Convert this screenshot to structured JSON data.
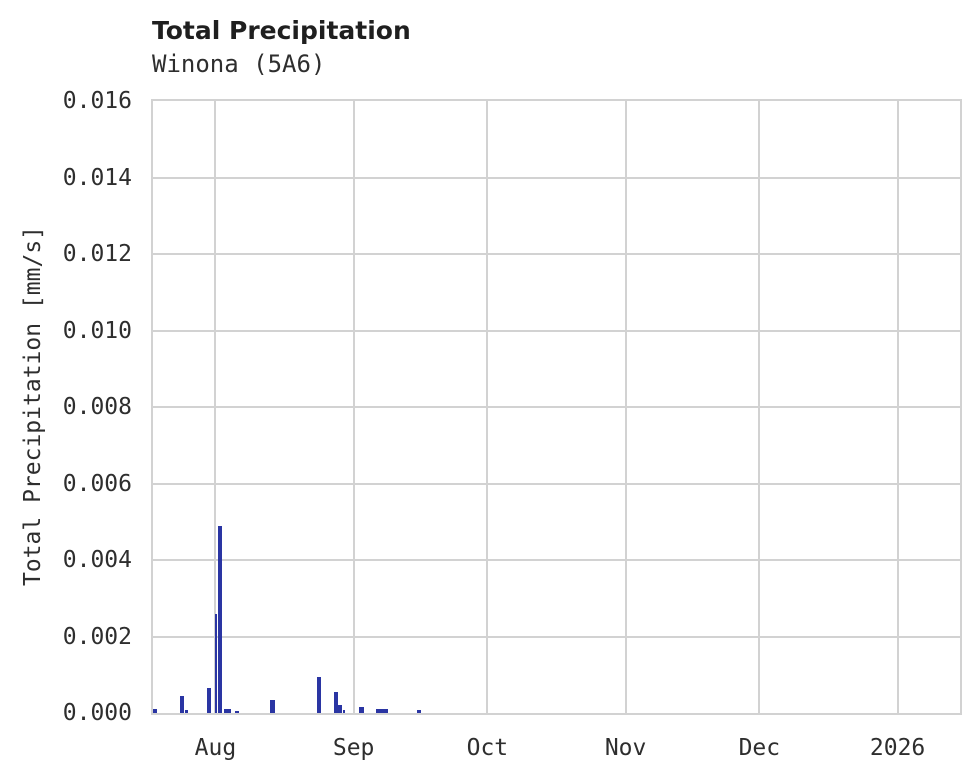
{
  "header": {
    "title": "Total Precipitation",
    "subtitle": "Winona (5A6)"
  },
  "colors": {
    "bar": "#2a35a3",
    "grid": "#d2d2d2",
    "text": "#2e2e2e",
    "title_text": "#1f1f1f",
    "background": "#ffffff"
  },
  "chart_data": {
    "type": "bar",
    "title": "Total Precipitation",
    "subtitle": "Winona (5A6)",
    "ylabel": "Total Precipitation [mm/s]",
    "xlabel": "",
    "ylim": [
      0,
      0.016
    ],
    "ytick_values": [
      0.0,
      0.002,
      0.004,
      0.006,
      0.008,
      0.01,
      0.012,
      0.014,
      0.016
    ],
    "ytick_decimals": 3,
    "grid": true,
    "legend": "none",
    "x_axis": {
      "start_date_estimate": "2025-07-18",
      "total_days": 181,
      "ticks": [
        {
          "label": "Aug",
          "offset_days": 14
        },
        {
          "label": "Sep",
          "offset_days": 45
        },
        {
          "label": "Oct",
          "offset_days": 75
        },
        {
          "label": "Nov",
          "offset_days": 106
        },
        {
          "label": "Dec",
          "offset_days": 136
        },
        {
          "label": "2026",
          "offset_days": 167
        }
      ]
    },
    "bars": [
      {
        "approx_date": "2025-07-18",
        "offset_days": 0.1,
        "width_days": 1.0,
        "value": 0.0001
      },
      {
        "approx_date": "2025-07-24",
        "offset_days": 6.0,
        "width_days": 1.0,
        "value": 0.00045
      },
      {
        "approx_date": "2025-07-25",
        "offset_days": 7.1,
        "width_days": 0.7,
        "value": 8e-05
      },
      {
        "approx_date": "2025-07-30",
        "offset_days": 12.0,
        "width_days": 1.0,
        "value": 0.00065
      },
      {
        "approx_date": "2025-08-01",
        "offset_days": 13.95,
        "width_days": 0.55,
        "value": 0.0026
      },
      {
        "approx_date": "2025-08-01",
        "offset_days": 14.5,
        "width_days": 1.0,
        "value": 0.0049
      },
      {
        "approx_date": "2025-08-03",
        "offset_days": 15.95,
        "width_days": 1.55,
        "value": 0.0001
      },
      {
        "approx_date": "2025-08-05",
        "offset_days": 18.4,
        "width_days": 1.0,
        "value": 6e-05
      },
      {
        "approx_date": "2025-08-13",
        "offset_days": 26.2,
        "width_days": 1.1,
        "value": 0.00035
      },
      {
        "approx_date": "2025-08-24",
        "offset_days": 36.8,
        "width_days": 0.8,
        "value": 0.00094
      },
      {
        "approx_date": "2025-08-28",
        "offset_days": 40.7,
        "width_days": 0.9,
        "value": 0.00055
      },
      {
        "approx_date": "2025-08-29",
        "offset_days": 41.6,
        "width_days": 1.0,
        "value": 0.0002
      },
      {
        "approx_date": "2025-08-30",
        "offset_days": 42.6,
        "width_days": 0.45,
        "value": 8e-05
      },
      {
        "approx_date": "2025-09-02",
        "offset_days": 46.3,
        "width_days": 1.1,
        "value": 0.00015
      },
      {
        "approx_date": "2025-09-06",
        "offset_days": 50.0,
        "width_days": 1.35,
        "value": 0.0001
      },
      {
        "approx_date": "2025-09-07",
        "offset_days": 51.3,
        "width_days": 1.35,
        "value": 0.0001
      },
      {
        "approx_date": "2025-09-15",
        "offset_days": 59.25,
        "width_days": 0.8,
        "value": 8e-05
      }
    ]
  }
}
